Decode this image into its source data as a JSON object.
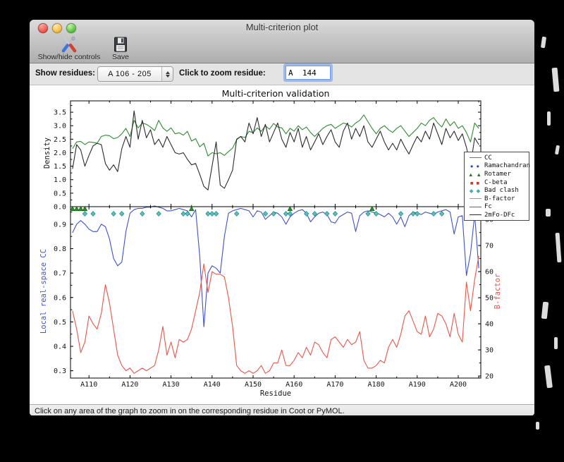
{
  "window": {
    "title": "Multi-criterion plot"
  },
  "toolbar": {
    "show_hide_label": "Show/hide controls",
    "save_label": "Save"
  },
  "controls": {
    "show_residues_label": "Show residues:",
    "show_residues_value": "A 106 - 205",
    "zoom_residue_label": "Click to zoom residue:",
    "zoom_residue_value": "A  144"
  },
  "status_bar": {
    "text": "Click on any area of the graph to zoom in on the corresponding residue in Coot or PyMOL."
  },
  "chart_data": {
    "type": "line",
    "title": "Multi-criterion validation",
    "xlabel": "Residue",
    "residue_start": 106,
    "x_range": [
      105.5,
      205.5
    ],
    "x_ticks": [
      [
        110,
        "A110"
      ],
      [
        120,
        "A120"
      ],
      [
        130,
        "A130"
      ],
      [
        140,
        "A140"
      ],
      [
        150,
        "A150"
      ],
      [
        160,
        "A160"
      ],
      [
        170,
        "A170"
      ],
      [
        180,
        "A180"
      ],
      [
        190,
        "A190"
      ],
      [
        200,
        "A200"
      ]
    ],
    "top_plot": {
      "ylabel": "Density",
      "ylim": [
        0,
        3.92
      ],
      "yticks": [
        [
          0,
          "0.0"
        ],
        [
          0.5,
          "0.5"
        ],
        [
          1,
          "1.0"
        ],
        [
          1.5,
          "1.5"
        ],
        [
          2,
          "2.0"
        ],
        [
          2.5,
          "2.5"
        ],
        [
          3,
          "3.0"
        ],
        [
          3.5,
          "3.5"
        ]
      ],
      "series": [
        {
          "name": "Fc",
          "color": "#2e8b2e",
          "values": [
            2.15,
            2.4,
            2.42,
            2.3,
            2.4,
            2.38,
            2.35,
            2.6,
            2.65,
            2.63,
            2.52,
            2.56,
            2.7,
            2.9,
            2.6,
            3.2,
            2.92,
            3.1,
            3.05,
            2.95,
            2.82,
            3.2,
            2.92,
            2.79,
            2.92,
            2.7,
            2.74,
            2.65,
            2.79,
            2.43,
            2.52,
            2.22,
            2.35,
            1.88,
            2.0,
            1.96,
            2.0,
            1.9,
            2.04,
            2.17,
            2.48,
            2.6,
            2.56,
            2.79,
            2.74,
            2.92,
            2.79,
            3.0,
            2.87,
            3.08,
            2.95,
            2.92,
            2.7,
            2.9,
            2.8,
            3.0,
            2.85,
            2.95,
            2.75,
            2.6,
            2.75,
            2.9,
            3.0,
            3.05,
            2.9,
            3.0,
            3.1,
            3.05,
            2.95,
            3.1,
            3.2,
            3.4,
            3.15,
            2.9,
            2.7,
            2.9,
            3.0,
            2.85,
            2.75,
            2.9,
            3.0,
            2.8,
            2.6,
            2.75,
            2.9,
            3.1,
            3.0,
            3.2,
            3.3,
            3.1,
            2.95,
            3.25,
            3.0,
            3.15,
            2.9,
            3.0,
            2.75,
            2.4,
            3.1,
            2.9
          ]
        },
        {
          "name": "2mFo-DFc",
          "color": "#2b2b2b",
          "values": [
            1.4,
            2.3,
            2.1,
            1.5,
            1.9,
            2.25,
            2.35,
            2.3,
            1.6,
            1.35,
            1.55,
            1.3,
            2.15,
            2.6,
            2.2,
            3.55,
            2.5,
            3.2,
            2.55,
            2.85,
            2.3,
            2.5,
            2.2,
            2.6,
            2.3,
            2.0,
            1.95,
            2.0,
            1.75,
            1.55,
            1.6,
            1.2,
            0.75,
            0.62,
            1.5,
            2.4,
            0.8,
            0.68,
            1.0,
            1.35,
            2.5,
            2.6,
            2.4,
            3.1,
            2.7,
            3.3,
            2.6,
            3.05,
            2.4,
            2.75,
            3.1,
            2.5,
            2.2,
            2.75,
            2.4,
            2.9,
            2.2,
            2.6,
            2.1,
            2.4,
            2.7,
            2.3,
            2.6,
            2.85,
            2.4,
            2.2,
            2.8,
            3.1,
            2.5,
            2.9,
            2.6,
            3.0,
            2.4,
            2.2,
            2.5,
            2.8,
            2.4,
            2.1,
            2.35,
            2.1,
            2.5,
            2.2,
            1.95,
            2.3,
            2.6,
            2.4,
            2.8,
            2.5,
            3.1,
            2.7,
            2.3,
            2.9,
            2.55,
            2.8,
            2.45,
            2.7,
            2.2,
            1.5,
            2.55,
            2.3
          ]
        }
      ]
    },
    "bottom_plot": {
      "ylabel_left": "Local real-space CC",
      "left_lim": [
        0.27,
        0.972
      ],
      "left_ticks": [
        [
          0.3,
          "0.3"
        ],
        [
          0.4,
          "0.4"
        ],
        [
          0.5,
          "0.5"
        ],
        [
          0.6,
          "0.6"
        ],
        [
          0.7,
          "0.7"
        ],
        [
          0.8,
          "0.8"
        ],
        [
          0.9,
          "0.9"
        ]
      ],
      "ylabel_right": "B-factor",
      "right_lim": [
        19.2,
        84.9
      ],
      "right_ticks": [
        [
          20,
          "20"
        ],
        [
          30,
          "30"
        ],
        [
          40,
          "40"
        ],
        [
          50,
          "50"
        ],
        [
          60,
          "60"
        ],
        [
          70,
          "70"
        ],
        [
          80,
          "80"
        ]
      ],
      "series": [
        {
          "name": "CC",
          "axis": "left",
          "color": "#3f51cc",
          "values": [
            0.865,
            0.9,
            0.915,
            0.9,
            0.88,
            0.87,
            0.87,
            0.9,
            0.89,
            0.84,
            0.76,
            0.73,
            0.745,
            0.87,
            0.945,
            0.96,
            0.965,
            0.965,
            0.97,
            0.97,
            0.975,
            0.97,
            0.965,
            0.955,
            0.955,
            0.96,
            0.965,
            0.96,
            0.955,
            0.93,
            0.96,
            0.77,
            0.48,
            0.7,
            0.73,
            0.72,
            0.7,
            0.85,
            0.945,
            0.955,
            0.96,
            0.965,
            0.96,
            0.955,
            0.93,
            0.955,
            0.95,
            0.92,
            0.935,
            0.95,
            0.945,
            0.93,
            0.9,
            0.93,
            0.945,
            0.955,
            0.96,
            0.945,
            0.91,
            0.93,
            0.945,
            0.95,
            0.94,
            0.91,
            0.905,
            0.93,
            0.94,
            0.95,
            0.945,
            0.87,
            0.935,
            0.95,
            0.955,
            0.95,
            0.945,
            0.94,
            0.93,
            0.945,
            0.93,
            0.9,
            0.93,
            0.89,
            0.935,
            0.95,
            0.945,
            0.94,
            0.95,
            0.945,
            0.94,
            0.95,
            0.955,
            0.96,
            0.95,
            0.86,
            0.93,
            0.935,
            0.69,
            0.78,
            0.94,
            0.72
          ]
        },
        {
          "name": "B-factor",
          "axis": "right",
          "color": "#e8564a",
          "values": [
            45,
            38,
            29,
            33,
            43,
            40,
            38,
            44,
            55,
            48,
            38,
            28,
            24,
            22,
            23,
            21,
            22,
            23,
            22,
            23,
            24,
            30,
            39,
            28,
            33,
            27,
            34,
            33,
            34,
            38,
            45,
            52,
            63,
            52,
            60,
            59,
            59,
            58,
            50,
            39,
            24,
            22,
            21,
            22,
            21,
            22,
            24,
            21,
            22,
            25,
            25,
            30,
            24,
            24,
            26,
            29,
            27,
            31,
            28,
            33,
            32,
            29,
            27,
            34,
            35,
            33,
            31,
            34,
            32,
            33,
            37,
            26,
            23,
            23,
            24,
            26,
            25,
            31,
            34,
            31,
            36,
            43,
            45,
            41,
            37,
            36,
            43,
            35,
            38,
            44,
            43,
            40,
            35,
            44,
            36,
            33,
            56,
            45,
            57,
            66
          ]
        }
      ],
      "markers": [
        {
          "name": "Rotamer",
          "shape": "triangle",
          "fill": "#2d8a2d",
          "edge": "#145214",
          "residues": [
            106,
            107,
            108,
            109,
            135,
            159,
            179,
            202
          ]
        },
        {
          "name": "Bad clash",
          "shape": "diamond",
          "fill": "#4fc3bd",
          "edge": "#1d7a74",
          "residues": [
            109,
            111,
            116,
            118,
            123,
            127,
            133,
            134,
            139,
            140,
            141,
            146,
            153,
            155,
            158,
            159,
            163,
            165,
            168,
            170,
            178,
            180,
            186,
            189,
            190,
            194,
            196,
            202,
            203
          ]
        }
      ]
    },
    "legend": [
      {
        "label": "CC",
        "type": "line",
        "color": "#5b6ada"
      },
      {
        "label": "Ramachandran",
        "type": "dots",
        "color": "#2442cc"
      },
      {
        "label": "Rotamer",
        "type": "triangles",
        "color": "#1f7a1f"
      },
      {
        "label": "C-beta",
        "type": "squares",
        "color": "#cc3928"
      },
      {
        "label": "Bad clash",
        "type": "diamonds",
        "color": "#3fb0aa"
      },
      {
        "label": "B-factor",
        "type": "line",
        "color": "#ef7a68"
      },
      {
        "label": "Fc",
        "type": "line",
        "color": "#2e8b2e"
      },
      {
        "label": "2mFo-DFc",
        "type": "line",
        "color": "#2b2b2b"
      }
    ]
  }
}
